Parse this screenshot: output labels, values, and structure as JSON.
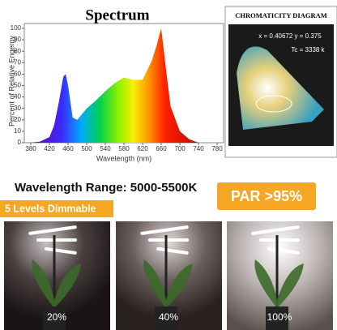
{
  "spectrum": {
    "title": "Spectrum",
    "y_label": "Percent of Relative Engergy",
    "x_label": "Wavelength (nm)",
    "xlim": [
      380,
      780
    ],
    "ylim": [
      0,
      100
    ],
    "xticks": [
      380,
      420,
      460,
      500,
      540,
      580,
      620,
      660,
      700,
      740,
      780
    ],
    "yticks": [
      0,
      10,
      20,
      30,
      40,
      50,
      60,
      70,
      80,
      90,
      100
    ],
    "x": [
      380,
      400,
      420,
      430,
      440,
      450,
      455,
      460,
      470,
      480,
      500,
      520,
      540,
      560,
      580,
      600,
      620,
      640,
      650,
      660,
      670,
      680,
      700,
      720,
      740,
      780
    ],
    "values": [
      0,
      1,
      5,
      15,
      35,
      58,
      60,
      50,
      22,
      20,
      30,
      37,
      45,
      52,
      57,
      55,
      55,
      72,
      85,
      100,
      65,
      32,
      10,
      3,
      0,
      0
    ]
  },
  "chromaticity": {
    "title": "CHROMATICITY DIAGRAM",
    "coords": "x = 0.40672 y = 0.375",
    "tc": "Tc = 3338 k"
  },
  "range": "Wavelength Range: 5000-5500K",
  "par": "PAR >95%",
  "dimmable": "5 Levels Dimmable",
  "photos": [
    {
      "label": "20%"
    },
    {
      "label": "40%"
    },
    {
      "label": "100%"
    }
  ]
}
